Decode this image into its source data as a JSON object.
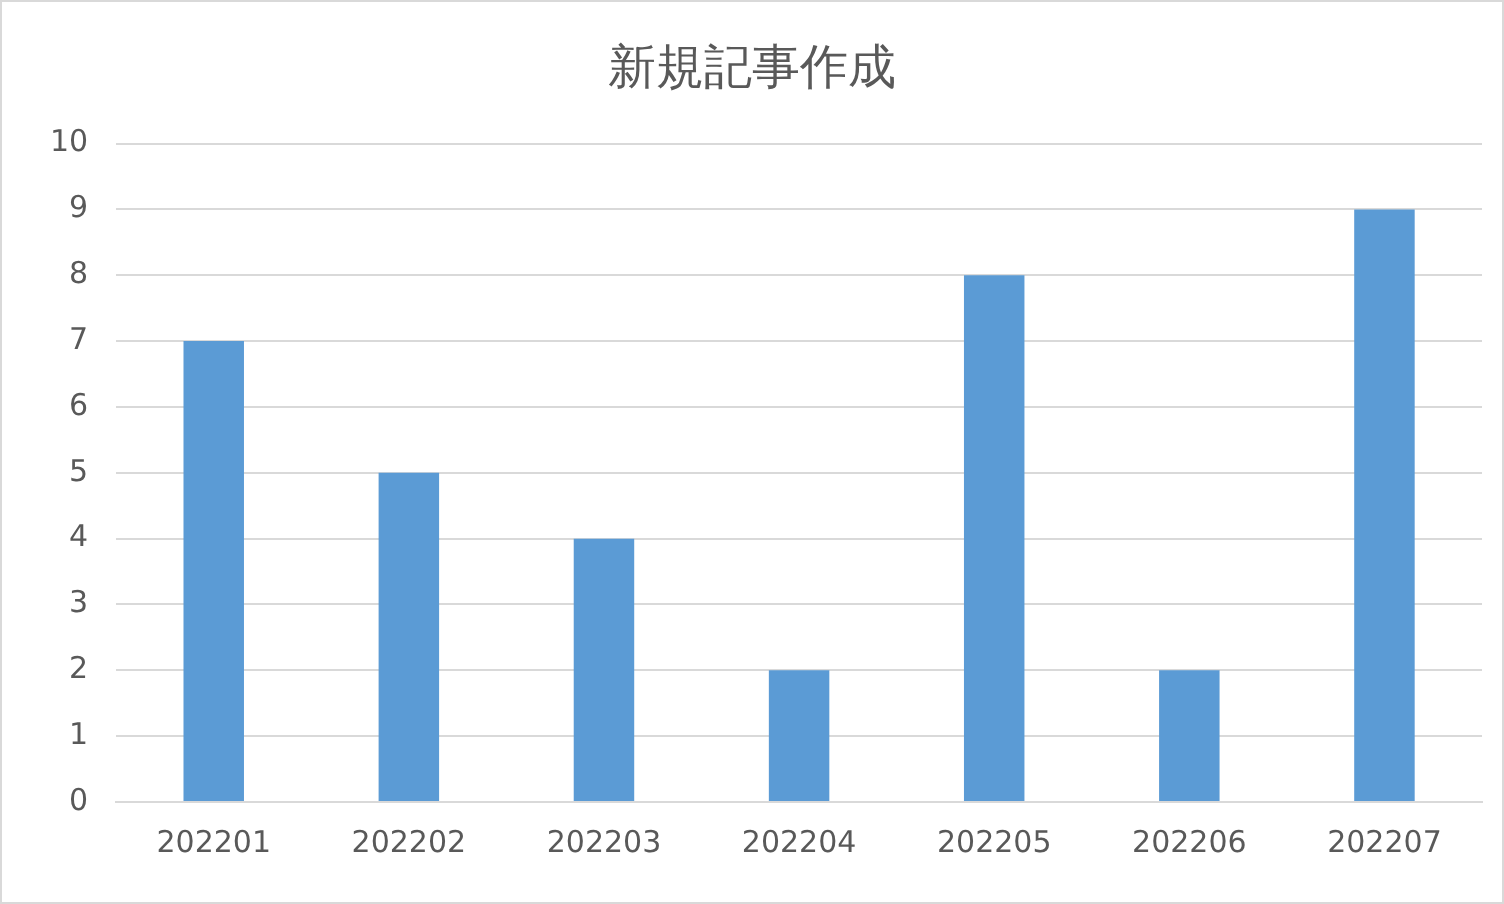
{
  "chart_data": {
    "type": "bar",
    "title": "新規記事作成",
    "categories": [
      "202201",
      "202202",
      "202203",
      "202204",
      "202205",
      "202206",
      "202207"
    ],
    "values": [
      7,
      5,
      4,
      2,
      8,
      2,
      9
    ],
    "color": "#5b9bd5",
    "ylim": [
      0,
      10
    ],
    "yticks": [
      0,
      1,
      2,
      3,
      4,
      5,
      6,
      7,
      8,
      9,
      10
    ],
    "grid": "y"
  }
}
